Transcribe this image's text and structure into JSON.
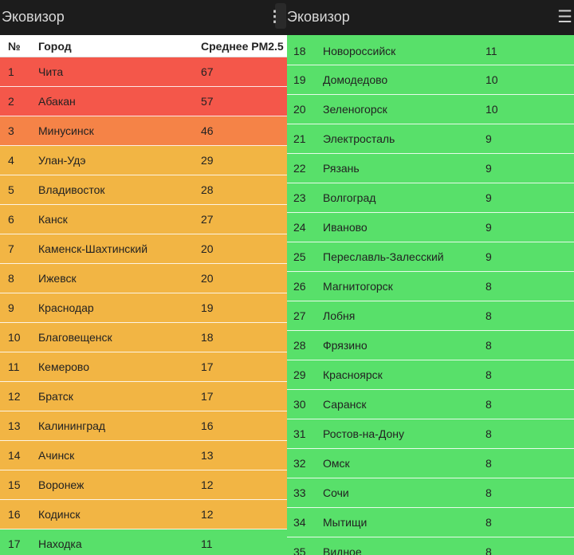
{
  "app_title": "Эковизор",
  "headers": {
    "num": "№",
    "city": "Город",
    "pm": "Среднее PM2.5"
  },
  "colors": {
    "red": "#f4574a",
    "orange_red": "#f58347",
    "orange": "#f2b544",
    "green": "#58e06a"
  },
  "rows_left": [
    {
      "n": "1",
      "city": "Чита",
      "pm": "67",
      "level": "red"
    },
    {
      "n": "2",
      "city": "Абакан",
      "pm": "57",
      "level": "red"
    },
    {
      "n": "3",
      "city": "Минусинск",
      "pm": "46",
      "level": "orange_red"
    },
    {
      "n": "4",
      "city": "Улан-Удэ",
      "pm": "29",
      "level": "orange"
    },
    {
      "n": "5",
      "city": "Владивосток",
      "pm": "28",
      "level": "orange"
    },
    {
      "n": "6",
      "city": "Канск",
      "pm": "27",
      "level": "orange"
    },
    {
      "n": "7",
      "city": "Каменск-Шахтинский",
      "pm": "20",
      "level": "orange"
    },
    {
      "n": "8",
      "city": "Ижевск",
      "pm": "20",
      "level": "orange"
    },
    {
      "n": "9",
      "city": "Краснодар",
      "pm": "19",
      "level": "orange"
    },
    {
      "n": "10",
      "city": "Благовещенск",
      "pm": "18",
      "level": "orange"
    },
    {
      "n": "11",
      "city": "Кемерово",
      "pm": "17",
      "level": "orange"
    },
    {
      "n": "12",
      "city": "Братск",
      "pm": "17",
      "level": "orange"
    },
    {
      "n": "13",
      "city": "Калининград",
      "pm": "16",
      "level": "orange"
    },
    {
      "n": "14",
      "city": "Ачинск",
      "pm": "13",
      "level": "orange"
    },
    {
      "n": "15",
      "city": "Воронеж",
      "pm": "12",
      "level": "orange"
    },
    {
      "n": "16",
      "city": "Кодинск",
      "pm": "12",
      "level": "orange"
    },
    {
      "n": "17",
      "city": "Находка",
      "pm": "11",
      "level": "green"
    }
  ],
  "rows_right": [
    {
      "n": "18",
      "city": "Новороссийск",
      "pm": "11",
      "level": "green"
    },
    {
      "n": "19",
      "city": "Домодедово",
      "pm": "10",
      "level": "green"
    },
    {
      "n": "20",
      "city": "Зеленогорск",
      "pm": "10",
      "level": "green"
    },
    {
      "n": "21",
      "city": "Электросталь",
      "pm": "9",
      "level": "green"
    },
    {
      "n": "22",
      "city": "Рязань",
      "pm": "9",
      "level": "green"
    },
    {
      "n": "23",
      "city": "Волгоград",
      "pm": "9",
      "level": "green"
    },
    {
      "n": "24",
      "city": "Иваново",
      "pm": "9",
      "level": "green"
    },
    {
      "n": "25",
      "city": "Переславль-Залесский",
      "pm": "9",
      "level": "green"
    },
    {
      "n": "26",
      "city": "Магнитогорск",
      "pm": "8",
      "level": "green"
    },
    {
      "n": "27",
      "city": "Лобня",
      "pm": "8",
      "level": "green"
    },
    {
      "n": "28",
      "city": "Фрязино",
      "pm": "8",
      "level": "green"
    },
    {
      "n": "29",
      "city": "Красноярск",
      "pm": "8",
      "level": "green"
    },
    {
      "n": "30",
      "city": "Саранск",
      "pm": "8",
      "level": "green"
    },
    {
      "n": "31",
      "city": "Ростов-на-Дону",
      "pm": "8",
      "level": "green"
    },
    {
      "n": "32",
      "city": "Омск",
      "pm": "8",
      "level": "green"
    },
    {
      "n": "33",
      "city": "Сочи",
      "pm": "8",
      "level": "green"
    },
    {
      "n": "34",
      "city": "Мытищи",
      "pm": "8",
      "level": "green"
    },
    {
      "n": "35",
      "city": "Видное",
      "pm": "8",
      "level": "green"
    }
  ]
}
